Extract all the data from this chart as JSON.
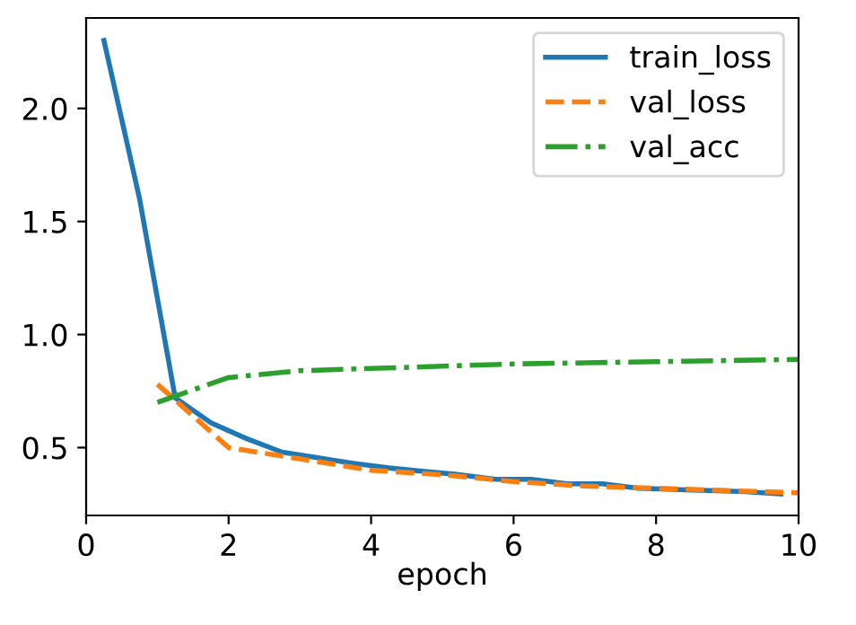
{
  "chart_data": {
    "type": "line",
    "xlabel": "epoch",
    "xlim": [
      0,
      10
    ],
    "xticks": [
      0,
      2,
      4,
      6,
      8,
      10
    ],
    "ylim": [
      0.2,
      2.4
    ],
    "yticks": [
      {
        "value": 0.5,
        "label": "0.5"
      },
      {
        "value": 1.0,
        "label": "1.0"
      },
      {
        "value": 1.5,
        "label": "1.5"
      },
      {
        "value": 2.0,
        "label": "2.0"
      }
    ],
    "legend": "top right",
    "grid": false,
    "series": [
      {
        "name": "train_loss",
        "color": "#1f77b4",
        "line_style": "solid",
        "x": [
          0.25,
          0.75,
          1.25,
          1.75,
          2.25,
          2.75,
          3.25,
          3.75,
          4.25,
          4.75,
          5.25,
          5.75,
          6.25,
          6.75,
          7.25,
          7.75,
          8.25,
          8.75,
          9.25,
          9.75
        ],
        "values": [
          2.3,
          1.6,
          0.72,
          0.61,
          0.54,
          0.48,
          0.455,
          0.43,
          0.41,
          0.395,
          0.38,
          0.36,
          0.36,
          0.34,
          0.34,
          0.32,
          0.315,
          0.31,
          0.305,
          0.295
        ]
      },
      {
        "name": "val_loss",
        "color": "#ff7f0e",
        "line_style": "dashed",
        "x": [
          1,
          2,
          3,
          4,
          5,
          6,
          7,
          8,
          9,
          10
        ],
        "values": [
          0.78,
          0.5,
          0.45,
          0.4,
          0.38,
          0.35,
          0.33,
          0.32,
          0.31,
          0.3
        ]
      },
      {
        "name": "val_acc",
        "color": "#2ca02c",
        "line_style": "dashdot",
        "x": [
          1,
          2,
          3,
          4,
          5,
          6,
          7,
          8,
          9,
          10
        ],
        "values": [
          0.7,
          0.81,
          0.84,
          0.85,
          0.86,
          0.87,
          0.875,
          0.88,
          0.885,
          0.89
        ]
      }
    ]
  }
}
